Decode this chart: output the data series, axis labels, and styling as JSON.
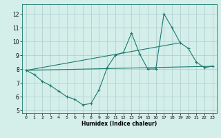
{
  "title": "",
  "xlabel": "Humidex (Indice chaleur)",
  "bg_color": "#d4eeea",
  "grid_color": "#aacccc",
  "line_color": "#1a7a6e",
  "spine_color": "#1a7a6e",
  "xlim": [
    -0.5,
    23.5
  ],
  "ylim": [
    4.8,
    12.7
  ],
  "yticks": [
    5,
    6,
    7,
    8,
    9,
    10,
    11,
    12
  ],
  "xticks": [
    0,
    1,
    2,
    3,
    4,
    5,
    6,
    7,
    8,
    9,
    10,
    11,
    12,
    13,
    14,
    15,
    16,
    17,
    18,
    19,
    20,
    21,
    22,
    23
  ],
  "line1_x": [
    0,
    1,
    2,
    3,
    4,
    5,
    6,
    7,
    8,
    9,
    10,
    11,
    12,
    13,
    14,
    15,
    16,
    17,
    18,
    19,
    20,
    21,
    22,
    23
  ],
  "line1_y": [
    7.9,
    7.6,
    7.1,
    6.8,
    6.4,
    6.0,
    5.8,
    5.4,
    5.5,
    6.5,
    8.1,
    9.0,
    9.2,
    10.6,
    9.1,
    8.0,
    8.0,
    12.0,
    11.0,
    9.9,
    9.5,
    8.5,
    8.1,
    8.2
  ],
  "line2_x": [
    0,
    23
  ],
  "line2_y": [
    7.9,
    8.2
  ],
  "line3_x": [
    0,
    19
  ],
  "line3_y": [
    7.9,
    9.9
  ],
  "marker1_x": [
    0,
    1,
    2,
    3,
    4,
    5,
    6,
    7,
    8,
    9,
    10,
    11,
    12,
    13,
    14,
    15,
    16,
    17,
    18,
    19,
    20,
    21,
    22,
    23
  ],
  "marker1_y": [
    7.9,
    7.6,
    7.1,
    6.8,
    6.4,
    6.0,
    5.8,
    5.4,
    5.5,
    6.5,
    8.1,
    9.0,
    9.2,
    10.6,
    9.1,
    8.0,
    8.0,
    12.0,
    11.0,
    9.9,
    9.5,
    8.5,
    8.1,
    8.2
  ]
}
